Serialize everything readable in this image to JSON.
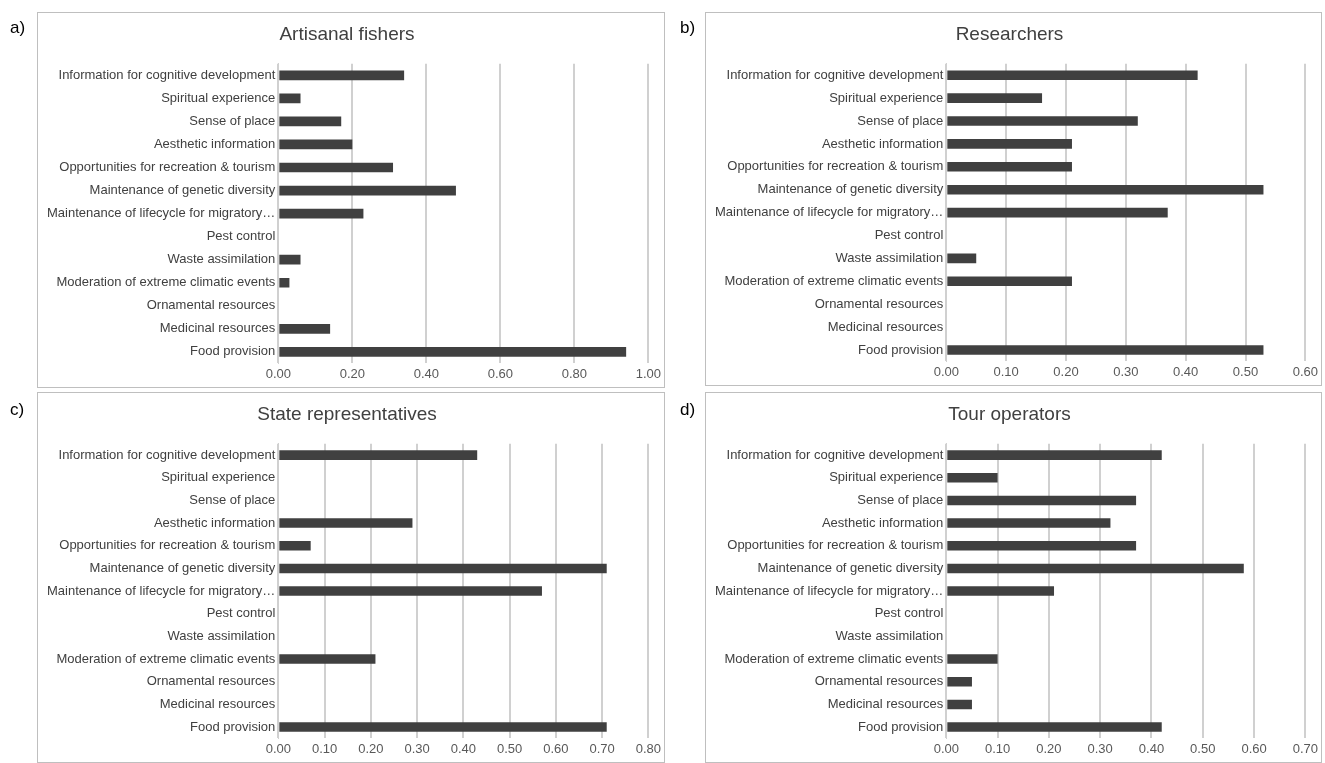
{
  "chart_data": [
    {
      "type": "bar",
      "orientation": "horizontal",
      "title": "Artisanal fishers",
      "annotations": [
        "a)"
      ],
      "categories": [
        "Information for cognitive development",
        "Spiritual experience",
        "Sense of place",
        "Aesthetic information",
        "Opportunities for recreation & tourism",
        "Maintenance of genetic diversity",
        "Maintenance of lifecycle for migratory…",
        "Pest control",
        "Waste assimilation",
        "Moderation of extreme climatic events",
        "Ornamental resources",
        "Medicinal resources",
        "Food provision"
      ],
      "values": [
        0.34,
        0.06,
        0.17,
        0.2,
        0.31,
        0.48,
        0.23,
        0,
        0.06,
        0.03,
        0,
        0.14,
        0.94
      ],
      "color": "#404040",
      "xlim": [
        0,
        1
      ],
      "xticks": [
        {
          "value": 0,
          "label": "0.00"
        },
        {
          "value": 0.2,
          "label": "0.20"
        },
        {
          "value": 0.4,
          "label": "0.40"
        },
        {
          "value": 0.6,
          "label": "0.60"
        },
        {
          "value": 0.8,
          "label": "0.80"
        },
        {
          "value": 1,
          "label": "1.00"
        }
      ],
      "grid": "x"
    },
    {
      "type": "bar",
      "orientation": "horizontal",
      "title": "Researchers",
      "annotations": [
        "b)"
      ],
      "categories": [
        "Information for cognitive development",
        "Spiritual experience",
        "Sense of place",
        "Aesthetic information",
        "Opportunities for recreation & tourism",
        "Maintenance of genetic diversity",
        "Maintenance of lifecycle for migratory…",
        "Pest control",
        "Waste assimilation",
        "Moderation of extreme climatic events",
        "Ornamental resources",
        "Medicinal resources",
        "Food provision"
      ],
      "values": [
        0.42,
        0.16,
        0.32,
        0.21,
        0.21,
        0.53,
        0.37,
        0,
        0.05,
        0.21,
        0,
        0,
        0.53
      ],
      "color": "#404040",
      "xlim": [
        0,
        0.6
      ],
      "xticks": [
        {
          "value": 0,
          "label": "0.00"
        },
        {
          "value": 0.1,
          "label": "0.10"
        },
        {
          "value": 0.2,
          "label": "0.20"
        },
        {
          "value": 0.3,
          "label": "0.30"
        },
        {
          "value": 0.4,
          "label": "0.40"
        },
        {
          "value": 0.5,
          "label": "0.50"
        },
        {
          "value": 0.6,
          "label": "0.60"
        }
      ],
      "grid": "x"
    },
    {
      "type": "bar",
      "orientation": "horizontal",
      "title": "State representatives",
      "annotations": [
        "c)"
      ],
      "categories": [
        "Information for cognitive development",
        "Spiritual experience",
        "Sense of place",
        "Aesthetic information",
        "Opportunities for recreation & tourism",
        "Maintenance of genetic diversity",
        "Maintenance of lifecycle for migratory…",
        "Pest control",
        "Waste assimilation",
        "Moderation of extreme climatic events",
        "Ornamental resources",
        "Medicinal resources",
        "Food provision"
      ],
      "values": [
        0.43,
        0,
        0,
        0.29,
        0.07,
        0.71,
        0.57,
        0,
        0,
        0.21,
        0,
        0,
        0.71
      ],
      "color": "#404040",
      "xlim": [
        0,
        0.8
      ],
      "xticks": [
        {
          "value": 0,
          "label": "0.00"
        },
        {
          "value": 0.1,
          "label": "0.10"
        },
        {
          "value": 0.2,
          "label": "0.20"
        },
        {
          "value": 0.3,
          "label": "0.30"
        },
        {
          "value": 0.4,
          "label": "0.40"
        },
        {
          "value": 0.5,
          "label": "0.50"
        },
        {
          "value": 0.6,
          "label": "0.60"
        },
        {
          "value": 0.7,
          "label": "0.70"
        },
        {
          "value": 0.8,
          "label": "0.80"
        }
      ],
      "grid": "x"
    },
    {
      "type": "bar",
      "orientation": "horizontal",
      "title": "Tour operators",
      "annotations": [
        "d)"
      ],
      "categories": [
        "Information for cognitive development",
        "Spiritual experience",
        "Sense of place",
        "Aesthetic information",
        "Opportunities for recreation & tourism",
        "Maintenance of genetic diversity",
        "Maintenance of lifecycle for migratory…",
        "Pest control",
        "Waste assimilation",
        "Moderation of extreme climatic events",
        "Ornamental resources",
        "Medicinal resources",
        "Food provision"
      ],
      "values": [
        0.42,
        0.1,
        0.37,
        0.32,
        0.37,
        0.58,
        0.21,
        0,
        0,
        0.1,
        0.05,
        0.05,
        0.42
      ],
      "color": "#404040",
      "xlim": [
        0,
        0.7
      ],
      "xticks": [
        {
          "value": 0,
          "label": "0.00"
        },
        {
          "value": 0.1,
          "label": "0.10"
        },
        {
          "value": 0.2,
          "label": "0.20"
        },
        {
          "value": 0.3,
          "label": "0.30"
        },
        {
          "value": 0.4,
          "label": "0.40"
        },
        {
          "value": 0.5,
          "label": "0.50"
        },
        {
          "value": 0.6,
          "label": "0.60"
        },
        {
          "value": 0.7,
          "label": "0.70"
        }
      ],
      "grid": "x"
    }
  ]
}
